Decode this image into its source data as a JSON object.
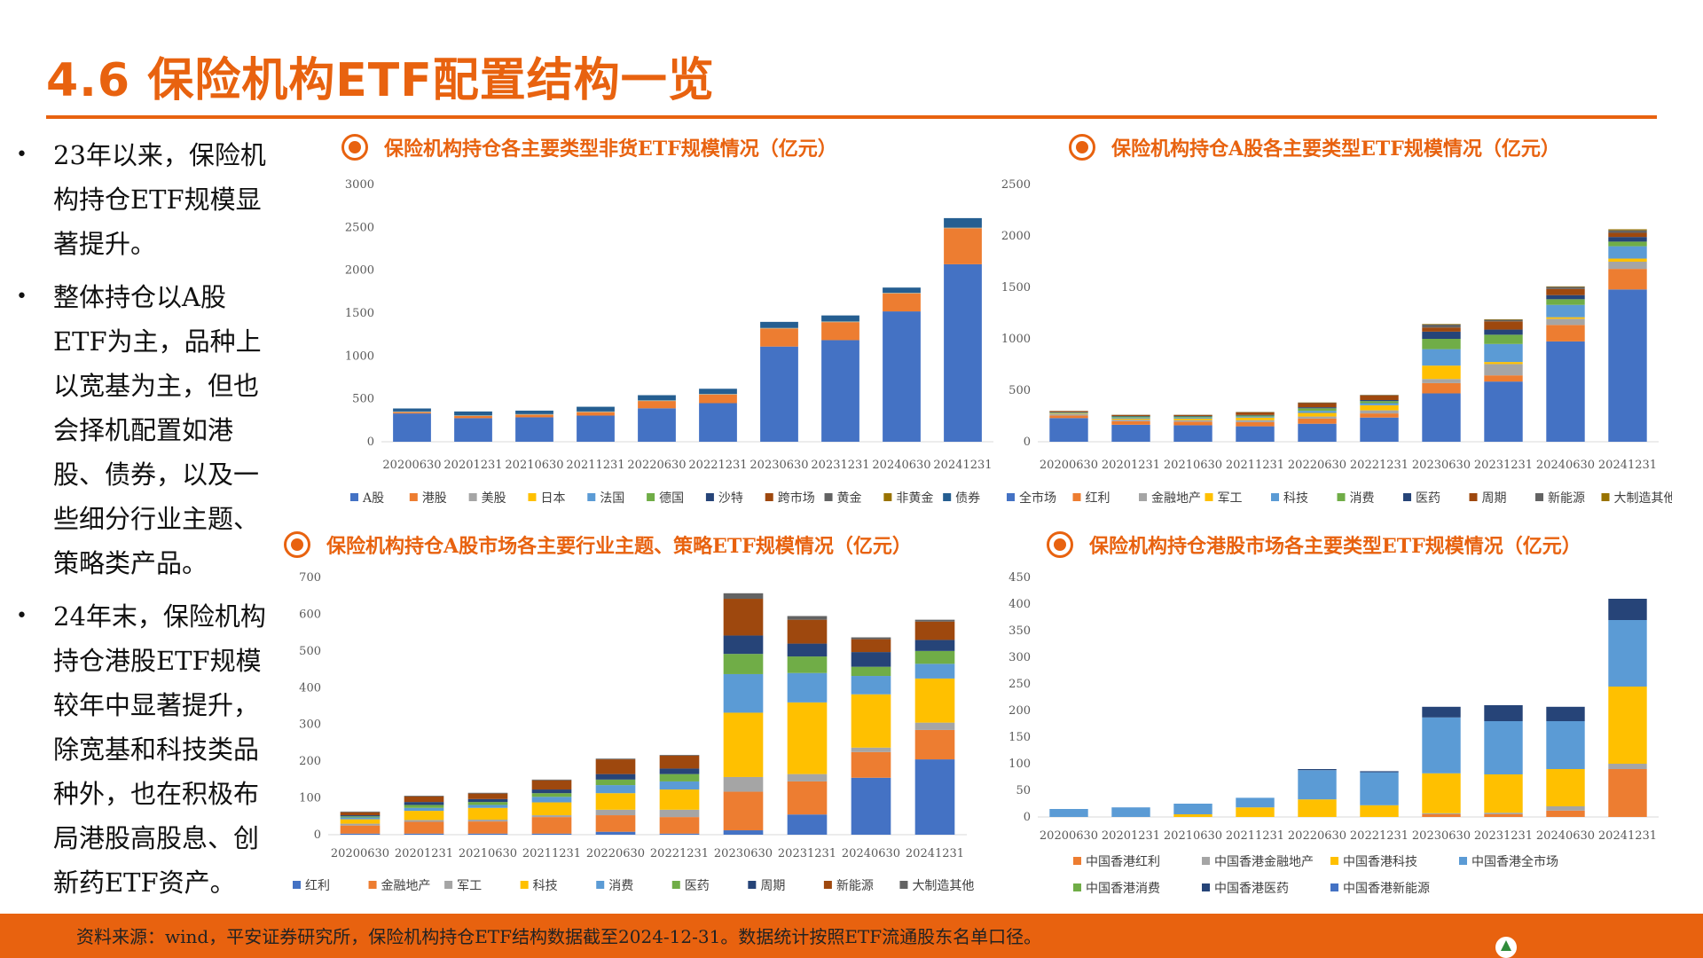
{
  "header": {
    "title": "4.6 保险机构ETF配置结构一览"
  },
  "bullets": [
    "23年以来，保险机构持仓ETF规模显著提升。",
    "整体持仓以A股ETF为主，品种上以宽基为主，但也会择机配置如港股、债券，以及一些细分行业主题、策略类产品。",
    "24年末，保险机构持仓港股ETF规模较年中显著提升，除宽基和科技类品种外，也在积极布局港股高股息、创新药ETF资产。"
  ],
  "footer": {
    "source": "资料来源：wind，平安证券研究所，保险机构持仓ETF结构数据截至2024-12-31。数据统计按照ETF流通股东名单口径。"
  },
  "chart_data": [
    {
      "type": "bar",
      "stacked": true,
      "title": "保险机构持仓各主要类型非货ETF规模情况（亿元）",
      "categories": [
        "20200630",
        "20201231",
        "20210630",
        "20211231",
        "20220630",
        "20221231",
        "20230630",
        "20231231",
        "20240630",
        "20241231"
      ],
      "ylim": [
        0,
        3000
      ],
      "yticks": [
        0,
        500,
        1000,
        1500,
        2000,
        2500,
        3000
      ],
      "legend_position": "bottom",
      "series": [
        {
          "name": "A股",
          "color": "#4472c4",
          "values": [
            330,
            275,
            285,
            305,
            390,
            450,
            1110,
            1185,
            1520,
            2070
          ]
        },
        {
          "name": "港股",
          "color": "#ed7d31",
          "values": [
            15,
            25,
            30,
            40,
            85,
            100,
            210,
            210,
            210,
            420
          ]
        },
        {
          "name": "美股",
          "color": "#a5a5a5",
          "values": [
            3,
            3,
            3,
            3,
            3,
            3,
            3,
            3,
            3,
            3
          ]
        },
        {
          "name": "日本",
          "color": "#ffc000",
          "values": [
            1,
            1,
            1,
            1,
            1,
            1,
            1,
            1,
            1,
            1
          ]
        },
        {
          "name": "法国",
          "color": "#5b9bd5",
          "values": [
            1,
            1,
            1,
            1,
            1,
            1,
            1,
            1,
            1,
            1
          ]
        },
        {
          "name": "德国",
          "color": "#70ad47",
          "values": [
            1,
            1,
            1,
            1,
            1,
            1,
            1,
            1,
            1,
            1
          ]
        },
        {
          "name": "沙特",
          "color": "#264478",
          "values": [
            0,
            0,
            0,
            0,
            0,
            0,
            0,
            0,
            0,
            0
          ]
        },
        {
          "name": "跨市场",
          "color": "#9e480e",
          "values": [
            0,
            0,
            0,
            0,
            0,
            0,
            0,
            0,
            0,
            0
          ]
        },
        {
          "name": "黄金",
          "color": "#636363",
          "values": [
            2,
            2,
            2,
            2,
            2,
            2,
            2,
            2,
            2,
            2
          ]
        },
        {
          "name": "非黄金",
          "color": "#997300",
          "values": [
            0,
            0,
            0,
            0,
            0,
            0,
            0,
            0,
            0,
            0
          ]
        },
        {
          "name": "债券",
          "color": "#255e91",
          "values": [
            35,
            45,
            40,
            55,
            60,
            60,
            70,
            70,
            60,
            110
          ]
        }
      ]
    },
    {
      "type": "bar",
      "stacked": true,
      "title": "保险机构持仓A股各主要类型ETF规模情况（亿元）",
      "categories": [
        "20200630",
        "20201231",
        "20210630",
        "20211231",
        "20220630",
        "20221231",
        "20230630",
        "20231231",
        "20240630",
        "20241231"
      ],
      "ylim": [
        0,
        2500
      ],
      "yticks": [
        0,
        500,
        1000,
        1500,
        2000,
        2500
      ],
      "legend_position": "bottom",
      "series": [
        {
          "name": "全市场",
          "color": "#4472c4",
          "values": [
            230,
            165,
            160,
            150,
            175,
            235,
            470,
            585,
            975,
            1480
          ]
        },
        {
          "name": "红利",
          "color": "#ed7d31",
          "values": [
            25,
            35,
            35,
            40,
            50,
            40,
            100,
            60,
            160,
            200
          ]
        },
        {
          "name": "金融地产",
          "color": "#a5a5a5",
          "values": [
            15,
            15,
            15,
            20,
            20,
            30,
            40,
            110,
            60,
            70
          ]
        },
        {
          "name": "军工",
          "color": "#ffc000",
          "values": [
            5,
            10,
            15,
            25,
            35,
            50,
            130,
            20,
            15,
            30
          ]
        },
        {
          "name": "科技",
          "color": "#5b9bd5",
          "values": [
            5,
            10,
            10,
            10,
            20,
            20,
            160,
            175,
            120,
            120
          ]
        },
        {
          "name": "消费",
          "color": "#70ad47",
          "values": [
            5,
            10,
            10,
            10,
            25,
            20,
            100,
            90,
            55,
            45
          ]
        },
        {
          "name": "医药",
          "color": "#264478",
          "values": [
            2,
            5,
            5,
            5,
            10,
            10,
            70,
            50,
            40,
            45
          ]
        },
        {
          "name": "周期",
          "color": "#9e480e",
          "values": [
            10,
            10,
            10,
            25,
            40,
            45,
            40,
            80,
            60,
            40
          ]
        },
        {
          "name": "新能源",
          "color": "#636363",
          "values": [
            2,
            2,
            2,
            3,
            5,
            5,
            30,
            15,
            20,
            25
          ]
        },
        {
          "name": "大制造其他",
          "color": "#997300",
          "values": [
            1,
            1,
            1,
            2,
            2,
            2,
            5,
            5,
            5,
            10
          ]
        }
      ]
    },
    {
      "type": "bar",
      "stacked": true,
      "title": "保险机构持仓A股市场各主要行业主题、策略ETF规模情况（亿元）",
      "categories": [
        "20200630",
        "20201231",
        "20210630",
        "20211231",
        "20220630",
        "20221231",
        "20230630",
        "20231231",
        "20240630",
        "20241231"
      ],
      "ylim": [
        0,
        700
      ],
      "yticks": [
        0,
        100,
        200,
        300,
        400,
        500,
        600,
        700
      ],
      "legend_position": "bottom",
      "series": [
        {
          "name": "红利",
          "color": "#4472c4",
          "values": [
            3,
            3,
            3,
            3,
            8,
            3,
            12,
            55,
            155,
            205
          ]
        },
        {
          "name": "金融地产",
          "color": "#ed7d31",
          "values": [
            22,
            32,
            33,
            45,
            45,
            45,
            105,
            90,
            70,
            80
          ]
        },
        {
          "name": "军工",
          "color": "#a5a5a5",
          "values": [
            5,
            5,
            5,
            5,
            15,
            20,
            40,
            20,
            12,
            20
          ]
        },
        {
          "name": "科技",
          "color": "#ffc000",
          "values": [
            12,
            25,
            32,
            35,
            45,
            55,
            175,
            195,
            145,
            120
          ]
        },
        {
          "name": "消费",
          "color": "#5b9bd5",
          "values": [
            5,
            8,
            8,
            15,
            22,
            22,
            105,
            80,
            50,
            40
          ]
        },
        {
          "name": "医药",
          "color": "#70ad47",
          "values": [
            3,
            8,
            8,
            10,
            15,
            20,
            55,
            45,
            25,
            35
          ]
        },
        {
          "name": "周期",
          "color": "#264478",
          "values": [
            3,
            8,
            8,
            10,
            15,
            15,
            50,
            35,
            40,
            30
          ]
        },
        {
          "name": "新能源",
          "color": "#9e480e",
          "values": [
            8,
            15,
            15,
            25,
            40,
            35,
            100,
            65,
            35,
            50
          ]
        },
        {
          "name": "大制造其他",
          "color": "#636363",
          "values": [
            2,
            2,
            2,
            2,
            2,
            2,
            15,
            10,
            5,
            5
          ]
        }
      ]
    },
    {
      "type": "bar",
      "stacked": true,
      "title": "保险机构持仓港股市场各主要类型ETF规模情况（亿元）",
      "categories": [
        "20200630",
        "20201231",
        "20210630",
        "20211231",
        "20220630",
        "20221231",
        "20230630",
        "20231231",
        "20240630",
        "20241231"
      ],
      "ylim": [
        0,
        450
      ],
      "yticks": [
        0,
        50,
        100,
        150,
        200,
        250,
        300,
        350,
        400,
        450
      ],
      "legend_position": "bottom",
      "series": [
        {
          "name": "中国香港红利",
          "color": "#ed7d31",
          "values": [
            0,
            0,
            0,
            0,
            0,
            0,
            5,
            5,
            12,
            90
          ]
        },
        {
          "name": "中国香港金融地产",
          "color": "#a5a5a5",
          "values": [
            0,
            0,
            0,
            0,
            0,
            0,
            2,
            3,
            8,
            10
          ]
        },
        {
          "name": "中国香港科技",
          "color": "#ffc000",
          "values": [
            0,
            0,
            5,
            18,
            33,
            22,
            75,
            72,
            70,
            145
          ]
        },
        {
          "name": "中国香港全市场",
          "color": "#5b9bd5",
          "values": [
            15,
            18,
            20,
            18,
            55,
            62,
            105,
            100,
            90,
            125
          ]
        },
        {
          "name": "中国香港消费",
          "color": "#70ad47",
          "values": [
            0,
            0,
            0,
            0,
            0,
            0,
            0,
            0,
            0,
            0
          ]
        },
        {
          "name": "中国香港医药",
          "color": "#264478",
          "values": [
            0,
            0,
            0,
            0,
            2,
            2,
            20,
            30,
            27,
            40
          ]
        },
        {
          "name": "中国香港新能源",
          "color": "#4472c4",
          "values": [
            0,
            0,
            0,
            0,
            0,
            0,
            0,
            0,
            0,
            0
          ]
        }
      ]
    }
  ]
}
